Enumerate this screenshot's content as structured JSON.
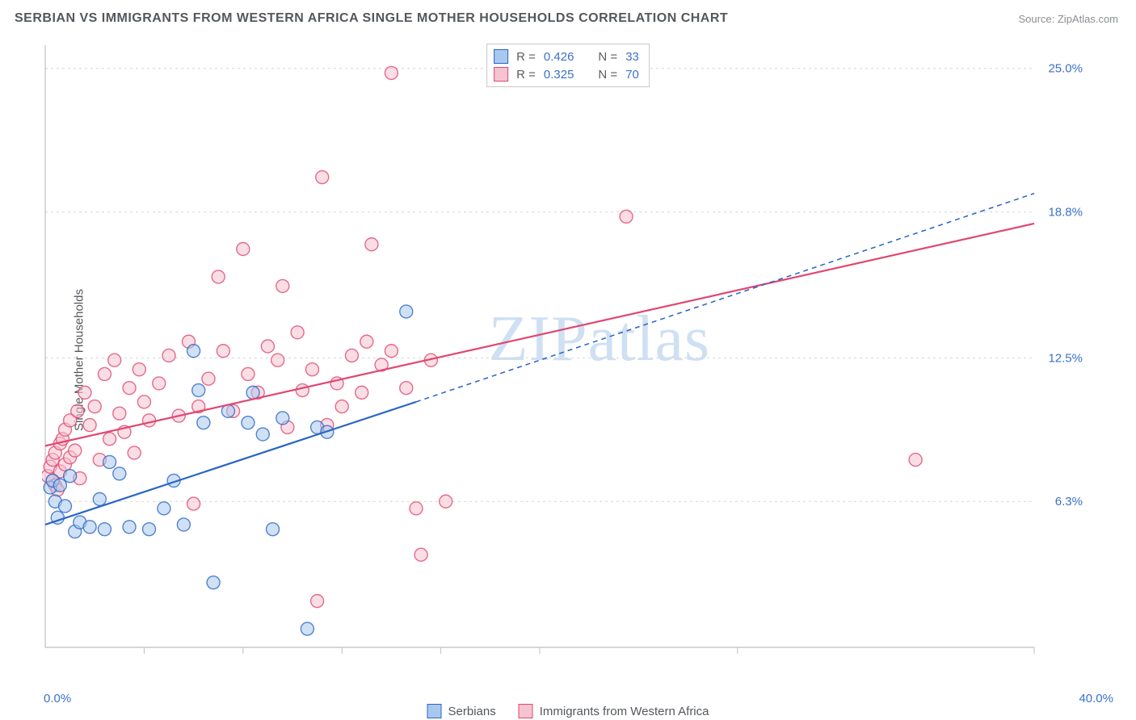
{
  "title": "SERBIAN VS IMMIGRANTS FROM WESTERN AFRICA SINGLE MOTHER HOUSEHOLDS CORRELATION CHART",
  "source": "Source: ZipAtlas.com",
  "ylabel": "Single Mother Households",
  "watermark": "ZIPatlas",
  "chart": {
    "type": "scatter",
    "background_color": "#ffffff",
    "grid_color": "#d6d6d6",
    "axis_color": "#bfbfbf",
    "label_color": "#54585c",
    "value_color": "#3a72c9",
    "xlim": [
      0,
      40
    ],
    "ylim": [
      0,
      26
    ],
    "x_min_label": "0.0%",
    "x_max_label": "40.0%",
    "x_ticks": [
      4,
      8,
      12,
      16,
      20,
      28,
      40
    ],
    "y_gridlines": [
      6.3,
      12.5,
      18.8,
      25.0
    ],
    "y_labels": [
      "6.3%",
      "12.5%",
      "18.8%",
      "25.0%"
    ],
    "title_fontsize": 16,
    "label_fontsize": 15,
    "marker_radius": 8,
    "marker_opacity": 0.55,
    "marker_stroke_width": 1.4,
    "trend_line_width": 2.2,
    "trend_dash": "6 5"
  },
  "series_a": {
    "name": "Serbians",
    "fill": "#a9c8ef",
    "stroke": "#2a66c4",
    "line_color": "#2a66c4",
    "r_value": "0.426",
    "n_value": "33",
    "trend_solid": {
      "x1": 0,
      "y1": 5.3,
      "x2": 15,
      "y2": 10.6
    },
    "trend_dash": {
      "x1": 15,
      "y1": 10.6,
      "x2": 40,
      "y2": 19.6
    },
    "points": [
      [
        0.2,
        6.9
      ],
      [
        0.4,
        6.3
      ],
      [
        0.3,
        7.2
      ],
      [
        0.6,
        7.0
      ],
      [
        0.5,
        5.6
      ],
      [
        0.8,
        6.1
      ],
      [
        1.0,
        7.4
      ],
      [
        1.2,
        5.0
      ],
      [
        1.4,
        5.4
      ],
      [
        1.8,
        5.2
      ],
      [
        2.2,
        6.4
      ],
      [
        2.4,
        5.1
      ],
      [
        3.0,
        7.5
      ],
      [
        3.4,
        5.2
      ],
      [
        4.2,
        5.1
      ],
      [
        4.8,
        6.0
      ],
      [
        5.2,
        7.2
      ],
      [
        5.6,
        5.3
      ],
      [
        6.2,
        11.1
      ],
      [
        6.4,
        9.7
      ],
      [
        6.8,
        2.8
      ],
      [
        7.4,
        10.2
      ],
      [
        8.2,
        9.7
      ],
      [
        8.4,
        11.0
      ],
      [
        8.8,
        9.2
      ],
      [
        9.2,
        5.1
      ],
      [
        9.6,
        9.9
      ],
      [
        10.6,
        0.8
      ],
      [
        11.0,
        9.5
      ],
      [
        11.4,
        9.3
      ],
      [
        14.6,
        14.5
      ],
      [
        6.0,
        12.8
      ],
      [
        2.6,
        8.0
      ]
    ]
  },
  "series_b": {
    "name": "Immigrants from Western Africa",
    "fill": "#f6c3d0",
    "stroke": "#e1476f",
    "line_color": "#e1476f",
    "r_value": "0.325",
    "n_value": "70",
    "trend_solid": {
      "x1": 0,
      "y1": 8.7,
      "x2": 40,
      "y2": 18.3
    },
    "trend_dash": null,
    "points": [
      [
        0.1,
        7.4
      ],
      [
        0.2,
        7.8
      ],
      [
        0.3,
        7.2
      ],
      [
        0.3,
        8.1
      ],
      [
        0.4,
        7.0
      ],
      [
        0.4,
        8.4
      ],
      [
        0.5,
        6.8
      ],
      [
        0.6,
        7.6
      ],
      [
        0.6,
        8.8
      ],
      [
        0.7,
        9.0
      ],
      [
        0.8,
        7.9
      ],
      [
        0.8,
        9.4
      ],
      [
        1.0,
        8.2
      ],
      [
        1.0,
        9.8
      ],
      [
        1.2,
        8.5
      ],
      [
        1.3,
        10.2
      ],
      [
        1.4,
        7.3
      ],
      [
        1.6,
        11.0
      ],
      [
        1.8,
        9.6
      ],
      [
        2.0,
        10.4
      ],
      [
        2.2,
        8.1
      ],
      [
        2.4,
        11.8
      ],
      [
        2.6,
        9.0
      ],
      [
        2.8,
        12.4
      ],
      [
        3.0,
        10.1
      ],
      [
        3.2,
        9.3
      ],
      [
        3.4,
        11.2
      ],
      [
        3.6,
        8.4
      ],
      [
        3.8,
        12.0
      ],
      [
        4.0,
        10.6
      ],
      [
        4.2,
        9.8
      ],
      [
        4.6,
        11.4
      ],
      [
        5.0,
        12.6
      ],
      [
        5.4,
        10.0
      ],
      [
        5.8,
        13.2
      ],
      [
        6.2,
        10.4
      ],
      [
        6.6,
        11.6
      ],
      [
        7.0,
        16.0
      ],
      [
        7.2,
        12.8
      ],
      [
        7.6,
        10.2
      ],
      [
        8.0,
        17.2
      ],
      [
        8.2,
        11.8
      ],
      [
        8.6,
        11.0
      ],
      [
        9.0,
        13.0
      ],
      [
        9.4,
        12.4
      ],
      [
        9.8,
        9.5
      ],
      [
        10.2,
        13.6
      ],
      [
        10.4,
        11.1
      ],
      [
        10.8,
        12.0
      ],
      [
        11.2,
        20.3
      ],
      [
        11.4,
        9.6
      ],
      [
        11.8,
        11.4
      ],
      [
        12.0,
        10.4
      ],
      [
        12.4,
        12.6
      ],
      [
        12.8,
        11.0
      ],
      [
        13.0,
        13.2
      ],
      [
        13.2,
        17.4
      ],
      [
        13.6,
        12.2
      ],
      [
        14.0,
        24.8
      ],
      [
        14.0,
        12.8
      ],
      [
        14.6,
        11.2
      ],
      [
        15.0,
        6.0
      ],
      [
        15.2,
        4.0
      ],
      [
        15.6,
        12.4
      ],
      [
        16.2,
        6.3
      ],
      [
        11.0,
        2.0
      ],
      [
        23.5,
        18.6
      ],
      [
        35.2,
        8.1
      ],
      [
        9.6,
        15.6
      ],
      [
        6.0,
        6.2
      ]
    ]
  },
  "r_legend": {
    "r_label": "R =",
    "n_label": "N ="
  }
}
